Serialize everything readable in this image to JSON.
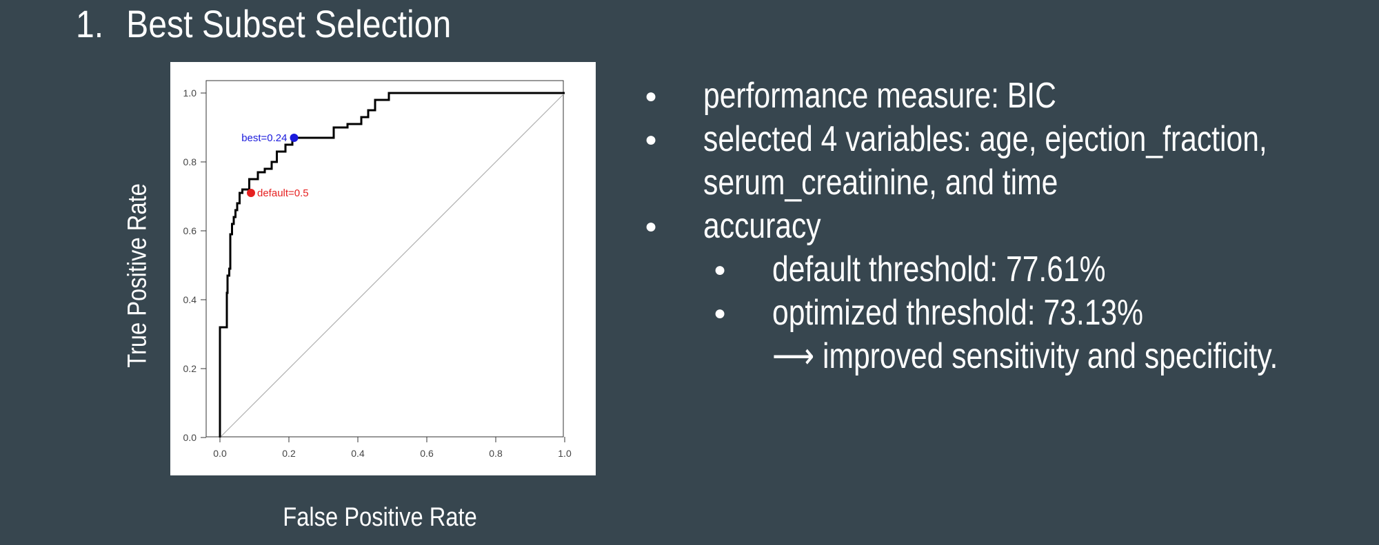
{
  "slide": {
    "number": "1.",
    "title": "Best Subset Selection"
  },
  "bullets": {
    "items": [
      {
        "text": "performance measure:  BIC"
      },
      {
        "text": "selected 4 variables: age,  ejection_fraction,"
      },
      {
        "text": "serum_creatinine, and time"
      },
      {
        "text": "accuracy"
      },
      {
        "text": "default threshold: 77.61%"
      },
      {
        "text": "optimized threshold: 73.13%"
      },
      {
        "text": "⟶ improved sensitivity and specificity."
      }
    ]
  },
  "chart_data": {
    "type": "line",
    "xlabel": "False Positive Rate",
    "ylabel": "True Positive Rate",
    "xlim": [
      0,
      1
    ],
    "ylim": [
      0,
      1
    ],
    "x_ticks": [
      "0.0",
      "0.2",
      "0.4",
      "0.6",
      "0.8",
      "1.0"
    ],
    "y_ticks": [
      "0.0",
      "0.2",
      "0.4",
      "0.6",
      "0.8",
      "1.0"
    ],
    "grid": false,
    "series": [
      {
        "color": "#000000",
        "x": [
          0,
          0,
          0.02,
          0.02,
          0.022,
          0.022,
          0.027,
          0.027,
          0.03,
          0.03,
          0.035,
          0.035,
          0.04,
          0.04,
          0.045,
          0.045,
          0.05,
          0.05,
          0.057,
          0.057,
          0.065,
          0.065,
          0.085,
          0.085,
          0.11,
          0.11,
          0.13,
          0.13,
          0.15,
          0.15,
          0.165,
          0.165,
          0.19,
          0.19,
          0.21,
          0.21,
          0.33,
          0.33,
          0.37,
          0.37,
          0.41,
          0.41,
          0.43,
          0.43,
          0.45,
          0.45,
          0.49,
          0.49,
          1.0
        ],
        "y": [
          0,
          0.32,
          0.32,
          0.42,
          0.42,
          0.47,
          0.47,
          0.49,
          0.49,
          0.59,
          0.59,
          0.62,
          0.62,
          0.64,
          0.64,
          0.66,
          0.66,
          0.68,
          0.68,
          0.71,
          0.71,
          0.72,
          0.72,
          0.75,
          0.75,
          0.77,
          0.77,
          0.78,
          0.78,
          0.8,
          0.8,
          0.83,
          0.83,
          0.85,
          0.85,
          0.87,
          0.87,
          0.9,
          0.9,
          0.91,
          0.91,
          0.93,
          0.93,
          0.95,
          0.95,
          0.98,
          0.98,
          1.0,
          1.0
        ]
      }
    ],
    "reference_line": {
      "x": [
        0,
        1
      ],
      "y": [
        0,
        1
      ],
      "color": "#b0b0b0"
    },
    "annotations": [
      {
        "label": "best=0.24",
        "x": 0.215,
        "y": 0.87,
        "color": "#1a1adc",
        "side": "left"
      },
      {
        "label": "default=0.5",
        "x": 0.09,
        "y": 0.71,
        "color": "#e62020",
        "side": "right"
      }
    ]
  }
}
